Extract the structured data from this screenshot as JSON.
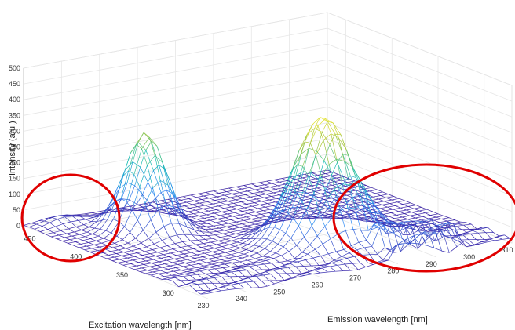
{
  "chart_data": {
    "type": "surface",
    "xlabel": "Emission wavelength [nm]",
    "ylabel": "Excitation wavelength [nm]",
    "zlabel": "Intensity (a.u.)",
    "x_ticks": [
      230,
      240,
      250,
      260,
      270,
      280,
      290,
      300,
      310
    ],
    "y_ticks": [
      300,
      350,
      400,
      450
    ],
    "z_ticks": [
      0,
      50,
      100,
      150,
      200,
      250,
      300,
      350,
      400,
      450,
      500
    ],
    "xlim": [
      230,
      310
    ],
    "ylim": [
      270,
      470
    ],
    "zlim": [
      0,
      500
    ],
    "colormap": "parula",
    "grid": true,
    "peaks": [
      {
        "emission": 276,
        "excitation": 335,
        "intensity": 400
      },
      {
        "emission": 250,
        "excitation": 420,
        "intensity": 310
      },
      {
        "emission": 290,
        "excitation": 290,
        "intensity": 80
      },
      {
        "emission": 238,
        "excitation": 460,
        "intensity": 25
      }
    ],
    "annotations": [
      {
        "shape": "ellipse",
        "color": "#e00000",
        "region": "left"
      },
      {
        "shape": "ellipse",
        "color": "#e00000",
        "region": "right"
      }
    ]
  }
}
